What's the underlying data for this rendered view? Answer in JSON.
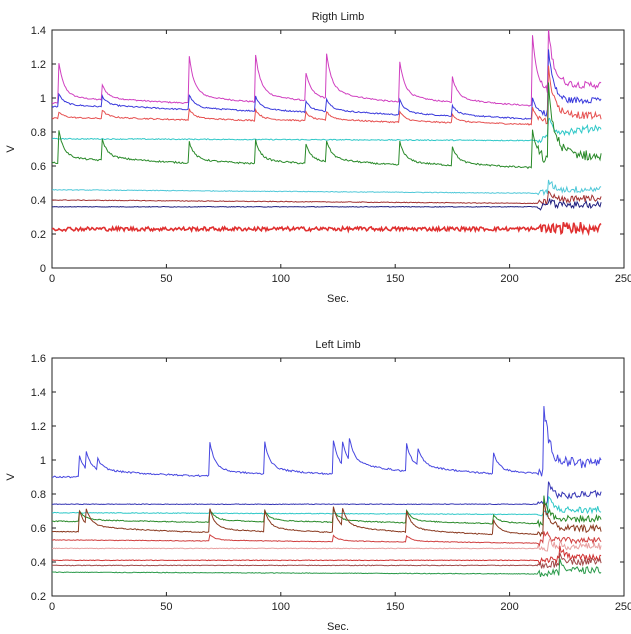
{
  "chart_data": [
    {
      "type": "line",
      "title": "Rigth Limb",
      "xlabel": "Sec.",
      "ylabel": "V",
      "xlim": [
        0,
        250
      ],
      "ylim": [
        0,
        1.4
      ],
      "xticks": [
        0,
        50,
        100,
        150,
        200,
        250
      ],
      "xtick_labels": [
        "0",
        "50",
        "100",
        "150",
        "200",
        "250"
      ],
      "yticks": [
        0,
        0.2,
        0.4,
        0.6,
        0.8,
        1,
        1.2,
        1.4
      ],
      "ytick_labels": [
        "0",
        "0.2",
        "0.4",
        "0.6",
        "0.8",
        "1",
        "1.2",
        "1.4"
      ],
      "grid": false,
      "series": [
        {
          "color": "#d040c0",
          "base": 0.97,
          "end": 0.94,
          "spikes": [
            [
              3,
              0.19
            ],
            [
              22,
              0.07
            ],
            [
              60,
              0.22
            ],
            [
              89,
              0.22
            ],
            [
              111,
              0.13
            ],
            [
              120,
              0.21
            ],
            [
              152,
              0.19
            ],
            [
              175,
              0.12
            ],
            [
              210,
              0.33
            ],
            [
              217,
              0.29
            ]
          ],
          "tail": 1.02,
          "noise": 0.004
        },
        {
          "color": "#3a3adc",
          "base": 0.95,
          "end": 0.87,
          "spikes": [
            [
              3,
              0.06
            ],
            [
              22,
              0.05
            ],
            [
              60,
              0.07
            ],
            [
              89,
              0.07
            ],
            [
              111,
              0.05
            ],
            [
              120,
              0.06
            ],
            [
              152,
              0.07
            ],
            [
              175,
              0.05
            ],
            [
              210,
              0.1
            ],
            [
              217,
              0.3
            ]
          ],
          "tail": 0.96,
          "noise": 0.004
        },
        {
          "color": "#e65050",
          "base": 0.88,
          "end": 0.84,
          "spikes": [
            [
              3,
              0.03
            ],
            [
              22,
              0.04
            ],
            [
              60,
              0.05
            ],
            [
              89,
              0.05
            ],
            [
              111,
              0.04
            ],
            [
              120,
              0.04
            ],
            [
              152,
              0.05
            ],
            [
              175,
              0.04
            ],
            [
              210,
              0.08
            ],
            [
              217,
              0.25
            ]
          ],
          "tail": 0.86,
          "noise": 0.004
        },
        {
          "color": "#30c8c8",
          "base": 0.76,
          "end": 0.75,
          "spikes": [
            [
              217,
              0.1
            ]
          ],
          "tail": 0.82,
          "noise": 0.003
        },
        {
          "color": "#2a8a2a",
          "base": 0.62,
          "end": 0.58,
          "spikes": [
            [
              3,
              0.15
            ],
            [
              22,
              0.1
            ],
            [
              60,
              0.1
            ],
            [
              89,
              0.11
            ],
            [
              111,
              0.09
            ],
            [
              120,
              0.1
            ],
            [
              152,
              0.11
            ],
            [
              175,
              0.09
            ],
            [
              210,
              0.18
            ],
            [
              217,
              0.35
            ]
          ],
          "tail": 0.6,
          "noise": 0.005
        },
        {
          "color": "#50c8d8",
          "base": 0.46,
          "end": 0.44,
          "spikes": [
            [
              217,
              0.06
            ]
          ],
          "tail": 0.46,
          "noise": 0.002
        },
        {
          "color": "#a03030",
          "base": 0.4,
          "end": 0.38,
          "spikes": [
            [
              217,
              0.05
            ]
          ],
          "tail": 0.41,
          "noise": 0.002
        },
        {
          "color": "#202080",
          "base": 0.36,
          "end": 0.36,
          "spikes": [
            [
              217,
              0.03
            ]
          ],
          "tail": 0.37,
          "noise": 0.002
        },
        {
          "color": "#e03030",
          "base": 0.23,
          "end": 0.23,
          "spikes": [],
          "tail": 0.24,
          "noise": 0.012
        }
      ]
    },
    {
      "type": "line",
      "title": "Left Limb",
      "xlabel": "Sec.",
      "ylabel": "V",
      "xlim": [
        0,
        250
      ],
      "ylim": [
        0.2,
        1.6
      ],
      "xticks": [
        0,
        50,
        100,
        150,
        200,
        250
      ],
      "xtick_labels": [
        "0",
        "50",
        "100",
        "150",
        "200",
        "250"
      ],
      "yticks": [
        0.2,
        0.4,
        0.6,
        0.8,
        1,
        1.2,
        1.4,
        1.6
      ],
      "ytick_labels": [
        "0.2",
        "0.4",
        "0.6",
        "0.8",
        "1",
        "1.2",
        "1.4",
        "1.6"
      ],
      "grid": false,
      "series": [
        {
          "color": "#4848e0",
          "base": 0.9,
          "end": 0.9,
          "spikes": [
            [
              12,
              0.1
            ],
            [
              15,
              0.08
            ],
            [
              20,
              0.05
            ],
            [
              69,
              0.16
            ],
            [
              93,
              0.15
            ],
            [
              123,
              0.16
            ],
            [
              127,
              0.11
            ],
            [
              130,
              0.1
            ],
            [
              155,
              0.13
            ],
            [
              160,
              0.08
            ],
            [
              193,
              0.1
            ],
            [
              215,
              0.32
            ]
          ],
          "tail": 0.95,
          "noise": 0.005
        },
        {
          "color": "#3434b4",
          "base": 0.74,
          "end": 0.74,
          "spikes": [
            [
              217,
              0.1
            ]
          ],
          "tail": 0.8,
          "noise": 0.002
        },
        {
          "color": "#30c8c8",
          "base": 0.69,
          "end": 0.68,
          "spikes": [
            [
              217,
              0.08
            ]
          ],
          "tail": 0.7,
          "noise": 0.002
        },
        {
          "color": "#2a8a2a",
          "base": 0.64,
          "end": 0.62,
          "spikes": [
            [
              12,
              0.05
            ],
            [
              69,
              0.06
            ],
            [
              93,
              0.05
            ],
            [
              123,
              0.06
            ],
            [
              155,
              0.06
            ],
            [
              193,
              0.04
            ],
            [
              215,
              0.12
            ]
          ],
          "tail": 0.64,
          "noise": 0.003
        },
        {
          "color": "#8a3a20",
          "base": 0.58,
          "end": 0.55,
          "spikes": [
            [
              12,
              0.1
            ],
            [
              15,
              0.07
            ],
            [
              69,
              0.11
            ],
            [
              93,
              0.1
            ],
            [
              123,
              0.12
            ],
            [
              127,
              0.08
            ],
            [
              155,
              0.1
            ],
            [
              193,
              0.07
            ],
            [
              215,
              0.15
            ]
          ],
          "tail": 0.58,
          "noise": 0.003
        },
        {
          "color": "#d04040",
          "base": 0.53,
          "end": 0.51,
          "spikes": [
            [
              69,
              0.03
            ],
            [
              123,
              0.03
            ],
            [
              155,
              0.03
            ],
            [
              215,
              0.06
            ]
          ],
          "tail": 0.52,
          "noise": 0.002
        },
        {
          "color": "#e8a0a0",
          "base": 0.48,
          "end": 0.48,
          "spikes": [
            [
              217,
              0.04
            ]
          ],
          "tail": 0.49,
          "noise": 0.002
        },
        {
          "color": "#d03030",
          "base": 0.41,
          "end": 0.41,
          "spikes": [
            [
              222,
              0.06
            ]
          ],
          "tail": 0.42,
          "noise": 0.002
        },
        {
          "color": "#a04848",
          "base": 0.38,
          "end": 0.38,
          "spikes": [
            [
              222,
              0.05
            ]
          ],
          "tail": 0.4,
          "noise": 0.002
        },
        {
          "color": "#2a9a4a",
          "base": 0.34,
          "end": 0.33,
          "spikes": [
            [
              222,
              0.05
            ]
          ],
          "tail": 0.35,
          "noise": 0.002
        }
      ]
    }
  ]
}
